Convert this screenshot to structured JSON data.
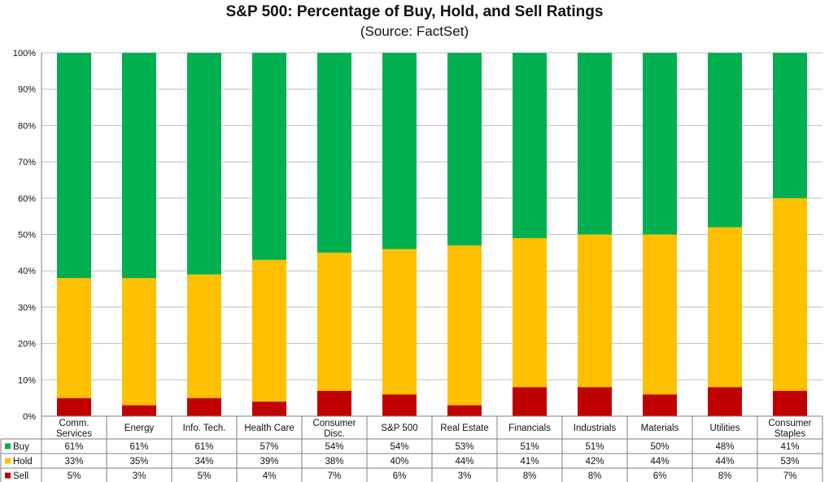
{
  "chart_data": {
    "type": "bar",
    "stacked": true,
    "title": "S&P 500: Percentage of Buy, Hold, and Sell Ratings",
    "subtitle": "(Source: FactSet)",
    "categories": [
      [
        "Comm.",
        "Services"
      ],
      [
        "Energy"
      ],
      [
        "Info. Tech."
      ],
      [
        "Health Care"
      ],
      [
        "Consumer",
        "Disc."
      ],
      [
        "S&P 500"
      ],
      [
        "Real Estate"
      ],
      [
        "Financials"
      ],
      [
        "Industrials"
      ],
      [
        "Materials"
      ],
      [
        "Utilities"
      ],
      [
        "Consumer",
        "Staples"
      ]
    ],
    "ylim": [
      0,
      100
    ],
    "yticks": [
      "0%",
      "10%",
      "20%",
      "30%",
      "40%",
      "50%",
      "60%",
      "70%",
      "80%",
      "90%",
      "100%"
    ],
    "grid": true,
    "series": [
      {
        "name": "Buy",
        "color": "#00b050",
        "values": [
          61,
          61,
          61,
          57,
          54,
          54,
          53,
          51,
          51,
          50,
          48,
          41
        ],
        "labels": [
          "61%",
          "61%",
          "61%",
          "57%",
          "54%",
          "54%",
          "53%",
          "51%",
          "51%",
          "50%",
          "48%",
          "41%"
        ]
      },
      {
        "name": "Hold",
        "color": "#ffc000",
        "values": [
          33,
          35,
          34,
          39,
          38,
          40,
          44,
          41,
          42,
          44,
          44,
          53
        ],
        "labels": [
          "33%",
          "35%",
          "34%",
          "39%",
          "38%",
          "40%",
          "44%",
          "41%",
          "42%",
          "44%",
          "44%",
          "53%"
        ]
      },
      {
        "name": "Sell",
        "color": "#c00000",
        "values": [
          5,
          3,
          5,
          4,
          7,
          6,
          3,
          8,
          8,
          6,
          8,
          7
        ],
        "labels": [
          "5%",
          "3%",
          "5%",
          "4%",
          "7%",
          "6%",
          "3%",
          "8%",
          "8%",
          "6%",
          "8%",
          "7%"
        ]
      }
    ],
    "stack_order_bottom_to_top": [
      "Sell",
      "Hold",
      "Buy"
    ]
  }
}
